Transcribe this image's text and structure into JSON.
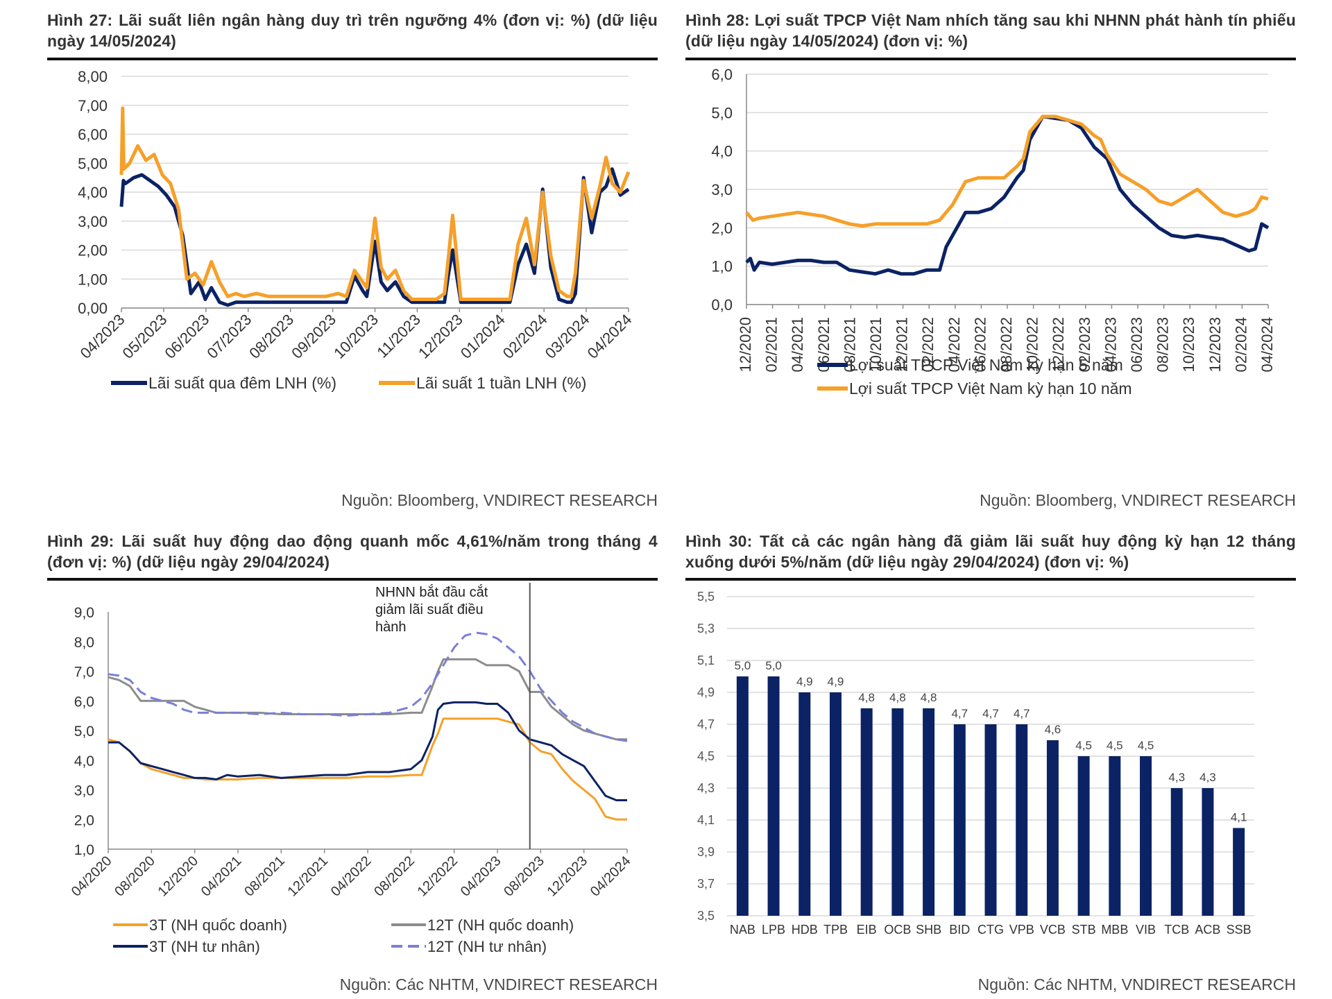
{
  "colors": {
    "navy": "#0b2365",
    "orange": "#f5a02a",
    "gray": "#8c8c8c",
    "lavender": "#7a7fd6",
    "grid": "#d9d9d9"
  },
  "chart_data": [
    {
      "id": "fig27",
      "type": "line",
      "title": "Hình 27: Lãi suất liên ngân hàng duy trì trên ngưỡng 4% (đơn vị: %) (dữ liệu ngày 14/05/2024)",
      "source": "Nguồn: Bloomberg, VNDIRECT RESEARCH",
      "ylim": [
        0,
        8
      ],
      "yticks": [
        "0,00",
        "1,00",
        "2,00",
        "3,00",
        "4,00",
        "5,00",
        "6,00",
        "7,00",
        "8,00"
      ],
      "xticks": [
        "04/2023",
        "05/2023",
        "06/2023",
        "07/2023",
        "08/2023",
        "09/2023",
        "10/2023",
        "11/2023",
        "12/2023",
        "01/2024",
        "02/2024",
        "03/2024",
        "04/2024"
      ],
      "xlim": [
        0,
        12.4
      ],
      "legend": "bottom",
      "series": [
        {
          "name": "Lãi suất qua đêm LNH (%)",
          "color": "navy",
          "x": [
            0,
            0.05,
            0.1,
            0.3,
            0.5,
            0.7,
            0.9,
            1.1,
            1.3,
            1.5,
            1.7,
            1.9,
            2.05,
            2.2,
            2.4,
            2.6,
            2.8,
            3.0,
            3.3,
            3.6,
            4.0,
            4.5,
            5.0,
            5.3,
            5.5,
            5.7,
            5.9,
            6.0,
            6.2,
            6.35,
            6.5,
            6.7,
            6.9,
            7.1,
            7.3,
            7.5,
            7.7,
            7.9,
            8.0,
            8.1,
            8.3,
            8.5,
            8.7,
            9.0,
            9.3,
            9.5,
            9.7,
            9.9,
            10.1,
            10.3,
            10.5,
            10.7,
            10.9,
            11.0,
            11.1,
            11.3,
            11.5,
            11.7,
            11.85,
            12.0,
            12.2,
            12.4
          ],
          "y": [
            3.5,
            4.4,
            4.3,
            4.5,
            4.6,
            4.4,
            4.2,
            3.9,
            3.5,
            2.5,
            0.5,
            0.9,
            0.3,
            0.7,
            0.2,
            0.1,
            0.2,
            0.2,
            0.2,
            0.2,
            0.2,
            0.2,
            0.2,
            0.2,
            0.2,
            1.1,
            0.6,
            0.4,
            2.3,
            0.9,
            0.6,
            0.9,
            0.4,
            0.2,
            0.2,
            0.2,
            0.2,
            0.2,
            1.2,
            2.0,
            0.2,
            0.2,
            0.2,
            0.2,
            0.2,
            0.2,
            1.5,
            2.2,
            1.2,
            4.1,
            1.4,
            0.3,
            0.2,
            0.2,
            0.5,
            4.5,
            2.6,
            4.0,
            4.2,
            4.8,
            3.9,
            4.1
          ]
        },
        {
          "name": "Lãi suất 1 tuần LNH (%)",
          "color": "orange",
          "x": [
            0,
            0.03,
            0.06,
            0.2,
            0.4,
            0.6,
            0.8,
            1.0,
            1.2,
            1.4,
            1.6,
            1.8,
            2.0,
            2.2,
            2.4,
            2.6,
            2.8,
            3.0,
            3.3,
            3.6,
            4.0,
            4.5,
            5.0,
            5.3,
            5.5,
            5.7,
            5.9,
            6.0,
            6.2,
            6.35,
            6.5,
            6.7,
            6.9,
            7.1,
            7.3,
            7.5,
            7.7,
            7.9,
            8.0,
            8.1,
            8.3,
            8.5,
            8.7,
            9.0,
            9.3,
            9.5,
            9.7,
            9.9,
            10.1,
            10.3,
            10.5,
            10.7,
            10.9,
            11.0,
            11.1,
            11.3,
            11.5,
            11.7,
            11.85,
            12.0,
            12.2,
            12.4
          ],
          "y": [
            4.6,
            6.9,
            4.8,
            5.0,
            5.6,
            5.1,
            5.3,
            4.6,
            4.3,
            3.4,
            1.0,
            1.2,
            0.8,
            1.6,
            0.9,
            0.4,
            0.5,
            0.4,
            0.5,
            0.4,
            0.4,
            0.4,
            0.4,
            0.5,
            0.4,
            1.3,
            0.9,
            0.7,
            3.1,
            1.4,
            1.0,
            1.3,
            0.6,
            0.3,
            0.3,
            0.3,
            0.3,
            0.5,
            1.8,
            3.2,
            0.3,
            0.3,
            0.3,
            0.3,
            0.3,
            0.3,
            2.2,
            3.1,
            1.5,
            4.0,
            1.8,
            0.6,
            0.4,
            0.4,
            1.2,
            4.4,
            3.1,
            4.2,
            5.2,
            4.3,
            4.0,
            4.7
          ]
        }
      ]
    },
    {
      "id": "fig28",
      "type": "line",
      "title": "Hình 28: Lợi suất TPCP Việt Nam nhích tăng sau khi NHNN phát hành tín phiếu (dữ liệu ngày 14/05/2024) (đơn vị: %)",
      "source": "Nguồn: Bloomberg, VNDIRECT RESEARCH",
      "ylim": [
        0,
        6
      ],
      "yticks": [
        "0,0",
        "1,0",
        "2,0",
        "3,0",
        "4,0",
        "5,0",
        "6,0"
      ],
      "xticks": [
        "12/2020",
        "02/2021",
        "04/2021",
        "06/2021",
        "08/2021",
        "10/2021",
        "12/2021",
        "02/2022",
        "04/2022",
        "06/2022",
        "08/2022",
        "10/2022",
        "12/2022",
        "02/2023",
        "04/2023",
        "06/2023",
        "08/2023",
        "10/2023",
        "12/2023",
        "02/2024",
        "04/2024"
      ],
      "xlim": [
        0,
        40.5
      ],
      "legend": "bottom",
      "series": [
        {
          "name": "Lợi suất TPCP Việt Nam kỳ hạn 5 năm",
          "color": "navy",
          "x": [
            0,
            0.3,
            0.6,
            1,
            2,
            3,
            4,
            5,
            6,
            7,
            8,
            9,
            10,
            11,
            12,
            13,
            14,
            15,
            15.5,
            16,
            16.5,
            17,
            18,
            19,
            20,
            21,
            21.5,
            22,
            23,
            24,
            25,
            26,
            27,
            28,
            29,
            30,
            31,
            32,
            33,
            34,
            35,
            36,
            37,
            38,
            39,
            39.5,
            40,
            40.5
          ],
          "y": [
            1.1,
            1.2,
            0.9,
            1.1,
            1.05,
            1.1,
            1.15,
            1.15,
            1.1,
            1.1,
            0.9,
            0.85,
            0.8,
            0.9,
            0.8,
            0.8,
            0.9,
            0.9,
            1.5,
            1.8,
            2.1,
            2.4,
            2.4,
            2.5,
            2.8,
            3.3,
            3.5,
            4.3,
            4.9,
            4.85,
            4.8,
            4.6,
            4.1,
            3.8,
            3.0,
            2.6,
            2.3,
            2.0,
            1.8,
            1.75,
            1.8,
            1.75,
            1.7,
            1.55,
            1.4,
            1.45,
            2.1,
            2.0
          ]
        },
        {
          "name": "Lợi suất TPCP Việt Nam kỳ hạn 10 năm",
          "color": "orange",
          "x": [
            0,
            0.5,
            1,
            2,
            3,
            4,
            5,
            6,
            7,
            8,
            9,
            10,
            11,
            12,
            13,
            14,
            15,
            15.5,
            16,
            16.5,
            17,
            18,
            19,
            20,
            21,
            21.5,
            22,
            23,
            24,
            25,
            26,
            27,
            27.5,
            28,
            29,
            30,
            31,
            32,
            33,
            34,
            35,
            36,
            37,
            38,
            39,
            39.5,
            40,
            40.5
          ],
          "y": [
            2.4,
            2.2,
            2.25,
            2.3,
            2.35,
            2.4,
            2.35,
            2.3,
            2.2,
            2.1,
            2.05,
            2.1,
            2.1,
            2.1,
            2.1,
            2.1,
            2.2,
            2.4,
            2.6,
            2.9,
            3.2,
            3.3,
            3.3,
            3.3,
            3.6,
            3.8,
            4.5,
            4.9,
            4.9,
            4.8,
            4.7,
            4.4,
            4.3,
            3.9,
            3.4,
            3.2,
            3.0,
            2.7,
            2.6,
            2.8,
            3.0,
            2.7,
            2.4,
            2.3,
            2.4,
            2.5,
            2.8,
            2.75
          ]
        }
      ]
    },
    {
      "id": "fig29",
      "type": "line",
      "title": "Hình 29: Lãi suất huy động dao động quanh mốc 4,61%/năm trong tháng 4 (đơn vị: %) (dữ liệu ngày 29/04/2024)",
      "source": "Nguồn: Các NHTM, VNDIRECT RESEARCH",
      "annotation": "NHNN bắt đầu cắt giảm lãi suất điều hành",
      "annotation_lines": [
        "NHNN bắt đầu cắt",
        "giảm lãi suất điều",
        "hành"
      ],
      "annotation_x": 39,
      "ylim": [
        1,
        9
      ],
      "yticks": [
        "1,0",
        "2,0",
        "3,0",
        "4,0",
        "5,0",
        "6,0",
        "7,0",
        "8,0",
        "9,0"
      ],
      "xticks": [
        "04/2020",
        "08/2020",
        "12/2020",
        "04/2021",
        "08/2021",
        "12/2021",
        "04/2022",
        "08/2022",
        "12/2022",
        "04/2023",
        "08/2023",
        "12/2023",
        "04/2024"
      ],
      "xlim": [
        0,
        48
      ],
      "legend": "bottom",
      "series": [
        {
          "name": "3T (NH quốc doanh)",
          "color": "orange",
          "dash": false,
          "x": [
            0,
            1,
            2,
            3,
            4,
            5,
            6,
            7,
            8,
            9,
            10,
            12,
            14,
            16,
            18,
            20,
            22,
            24,
            26,
            28,
            29,
            30,
            30.5,
            31,
            32,
            34,
            36,
            37,
            38,
            39,
            40,
            41,
            42,
            43,
            44,
            45,
            46,
            47,
            48
          ],
          "y": [
            4.7,
            4.6,
            4.3,
            3.9,
            3.7,
            3.6,
            3.5,
            3.4,
            3.4,
            3.35,
            3.35,
            3.35,
            3.4,
            3.4,
            3.4,
            3.4,
            3.4,
            3.45,
            3.45,
            3.5,
            3.5,
            4.5,
            4.9,
            5.4,
            5.4,
            5.4,
            5.4,
            5.3,
            5.2,
            4.6,
            4.3,
            4.2,
            3.7,
            3.3,
            3.0,
            2.7,
            2.1,
            2.0,
            2.0
          ]
        },
        {
          "name": "3T (NH tư nhân)",
          "color": "navy",
          "dash": false,
          "x": [
            0,
            1,
            2,
            3,
            4,
            5,
            6,
            7,
            8,
            9,
            10,
            11,
            12,
            14,
            16,
            18,
            20,
            22,
            24,
            26,
            28,
            29,
            30,
            30.5,
            31,
            32,
            34,
            35,
            36,
            37,
            38,
            39,
            40,
            41,
            42,
            43,
            44,
            45,
            46,
            47,
            48
          ],
          "y": [
            4.6,
            4.6,
            4.3,
            3.9,
            3.8,
            3.7,
            3.6,
            3.5,
            3.4,
            3.4,
            3.35,
            3.5,
            3.45,
            3.5,
            3.4,
            3.45,
            3.5,
            3.5,
            3.6,
            3.6,
            3.7,
            4.0,
            4.8,
            5.7,
            5.9,
            5.95,
            5.95,
            5.9,
            5.9,
            5.6,
            5.0,
            4.7,
            4.6,
            4.5,
            4.2,
            4.0,
            3.8,
            3.3,
            2.8,
            2.65,
            2.65
          ]
        },
        {
          "name": "12T (NH quốc doanh)",
          "color": "gray",
          "dash": false,
          "x": [
            0,
            1,
            2,
            3,
            4,
            5,
            6,
            7,
            8,
            9,
            10,
            12,
            14,
            16,
            18,
            20,
            22,
            24,
            26,
            28,
            29,
            30,
            30.5,
            31,
            34,
            35,
            36,
            37,
            38,
            39,
            40,
            41,
            42,
            43,
            44,
            45,
            46,
            47,
            48
          ],
          "y": [
            6.8,
            6.7,
            6.5,
            6.0,
            6.0,
            6.0,
            6.0,
            6.0,
            5.8,
            5.7,
            5.6,
            5.6,
            5.6,
            5.55,
            5.55,
            5.55,
            5.55,
            5.55,
            5.55,
            5.6,
            5.6,
            6.5,
            7.0,
            7.4,
            7.4,
            7.2,
            7.2,
            7.2,
            7.0,
            6.3,
            6.3,
            5.8,
            5.5,
            5.2,
            5.0,
            4.9,
            4.8,
            4.7,
            4.7
          ]
        },
        {
          "name": "12T (NH tư nhân)",
          "color": "lavender",
          "dash": true,
          "x": [
            0,
            1,
            2,
            3,
            4,
            5,
            6,
            7,
            8,
            9,
            10,
            12,
            14,
            16,
            18,
            20,
            22,
            24,
            26,
            27,
            28,
            29,
            30,
            31,
            32,
            33,
            34,
            35,
            36,
            37,
            38,
            39,
            40,
            41,
            42,
            43,
            44,
            45,
            46,
            47,
            48
          ],
          "y": [
            6.9,
            6.85,
            6.7,
            6.3,
            6.1,
            6.0,
            5.9,
            5.7,
            5.6,
            5.6,
            5.6,
            5.6,
            5.55,
            5.6,
            5.55,
            5.55,
            5.5,
            5.55,
            5.6,
            5.7,
            5.8,
            6.1,
            6.6,
            7.2,
            7.8,
            8.2,
            8.3,
            8.25,
            8.1,
            7.8,
            7.5,
            7.0,
            6.4,
            6.0,
            5.6,
            5.3,
            5.1,
            4.9,
            4.8,
            4.7,
            4.65
          ]
        }
      ]
    },
    {
      "id": "fig30",
      "type": "bar",
      "title": "Hình 30: Tất cả các ngân hàng đã giảm lãi suất huy động kỳ hạn 12 tháng xuống dưới 5%/năm (dữ liệu ngày 29/04/2024) (đơn vị: %)",
      "source": "Nguồn: Các NHTM, VNDIRECT RESEARCH",
      "ylim": [
        3.5,
        5.5
      ],
      "yticks": [
        "3,5",
        "3,7",
        "3,9",
        "4,1",
        "4,3",
        "4,5",
        "4,7",
        "4,9",
        "5,1",
        "5,3",
        "5,5"
      ],
      "categories": [
        "NAB",
        "LPB",
        "HDB",
        "TPB",
        "EIB",
        "OCB",
        "SHB",
        "BID",
        "CTG",
        "VPB",
        "VCB",
        "STB",
        "MBB",
        "VIB",
        "TCB",
        "ACB",
        "SSB"
      ],
      "values": [
        5.0,
        5.0,
        4.9,
        4.9,
        4.8,
        4.8,
        4.8,
        4.7,
        4.7,
        4.7,
        4.6,
        4.5,
        4.5,
        4.5,
        4.3,
        4.3,
        4.05
      ],
      "labels": [
        "5,0",
        "5,0",
        "4,9",
        "4,9",
        "4,8",
        "4,8",
        "4,8",
        "4,7",
        "4,7",
        "4,7",
        "4,6",
        "4,5",
        "4,5",
        "4,5",
        "4,3",
        "4,3",
        "4,1"
      ]
    }
  ]
}
